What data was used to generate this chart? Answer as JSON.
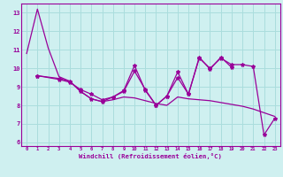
{
  "background_color": "#cff0f0",
  "line_color": "#990099",
  "grid_color": "#aadddd",
  "xlabel": "Windchill (Refroidissement éolien,°C)",
  "x": [
    0,
    1,
    2,
    3,
    4,
    5,
    6,
    7,
    8,
    9,
    10,
    11,
    12,
    13,
    14,
    15,
    16,
    17,
    18,
    19,
    20,
    21,
    22,
    23
  ],
  "line1_y": [
    10.8,
    13.2,
    11.1,
    9.55,
    9.3,
    8.75,
    8.35,
    8.2,
    8.3,
    8.45,
    8.4,
    8.25,
    8.1,
    8.0,
    8.45,
    8.35,
    8.3,
    8.25,
    8.15,
    8.05,
    7.95,
    7.8,
    7.6,
    7.4
  ],
  "line2_x": [
    1,
    3,
    4,
    5,
    6,
    7,
    8,
    9,
    10,
    11,
    12,
    13,
    14,
    15,
    16,
    17,
    18,
    19,
    20,
    21,
    22,
    23
  ],
  "line2_y": [
    9.6,
    9.45,
    9.3,
    8.75,
    8.35,
    8.2,
    8.45,
    8.8,
    10.15,
    8.8,
    8.0,
    8.5,
    9.8,
    8.6,
    10.55,
    10.0,
    10.55,
    10.2,
    10.2,
    10.1,
    6.4,
    7.3
  ],
  "line3_x": [
    1,
    3,
    4,
    5,
    6,
    7,
    8,
    9,
    10,
    11,
    12,
    13,
    14,
    15,
    16,
    17,
    18,
    19
  ],
  "line3_y": [
    9.6,
    9.4,
    9.25,
    8.85,
    8.6,
    8.3,
    8.45,
    8.75,
    9.85,
    8.85,
    8.0,
    8.5,
    9.5,
    8.6,
    10.6,
    9.95,
    10.6,
    10.05
  ],
  "ylim": [
    5.8,
    13.5
  ],
  "xlim": [
    -0.5,
    23.5
  ],
  "yticks": [
    6,
    7,
    8,
    9,
    10,
    11,
    12,
    13
  ],
  "xticks": [
    0,
    1,
    2,
    3,
    4,
    5,
    6,
    7,
    8,
    9,
    10,
    11,
    12,
    13,
    14,
    15,
    16,
    17,
    18,
    19,
    20,
    21,
    22,
    23
  ]
}
